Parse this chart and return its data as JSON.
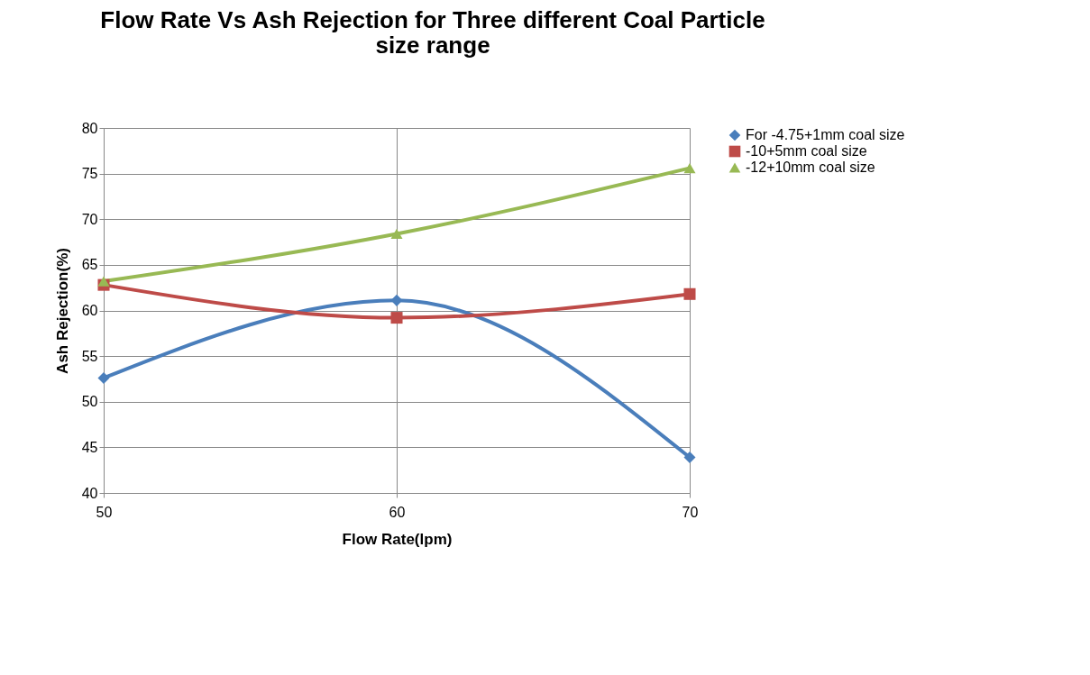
{
  "chart_data": {
    "type": "line",
    "title": "Flow Rate Vs Ash Rejection for Three different Coal Particle size range",
    "xlabel": "Flow Rate(lpm)",
    "ylabel": "Ash Rejection(%)",
    "x": [
      50,
      60,
      70
    ],
    "xlim": [
      50,
      70
    ],
    "xticks": [
      50,
      60,
      70
    ],
    "ylim": [
      40,
      80
    ],
    "yticks": [
      40,
      45,
      50,
      55,
      60,
      65,
      70,
      75,
      80
    ],
    "grid": true,
    "legend": "right",
    "series": [
      {
        "name": "For -4.75+1mm coal size",
        "color": "#4a7ebb",
        "marker": "diamond",
        "values": [
          52.6,
          61.1,
          43.9
        ]
      },
      {
        "name": "-10+5mm coal size",
        "color": "#be4b48",
        "marker": "square",
        "values": [
          62.8,
          59.2,
          61.8
        ]
      },
      {
        "name": "-12+10mm coal size",
        "color": "#98b954",
        "marker": "triangle",
        "values": [
          63.2,
          68.4,
          75.6
        ]
      }
    ]
  }
}
